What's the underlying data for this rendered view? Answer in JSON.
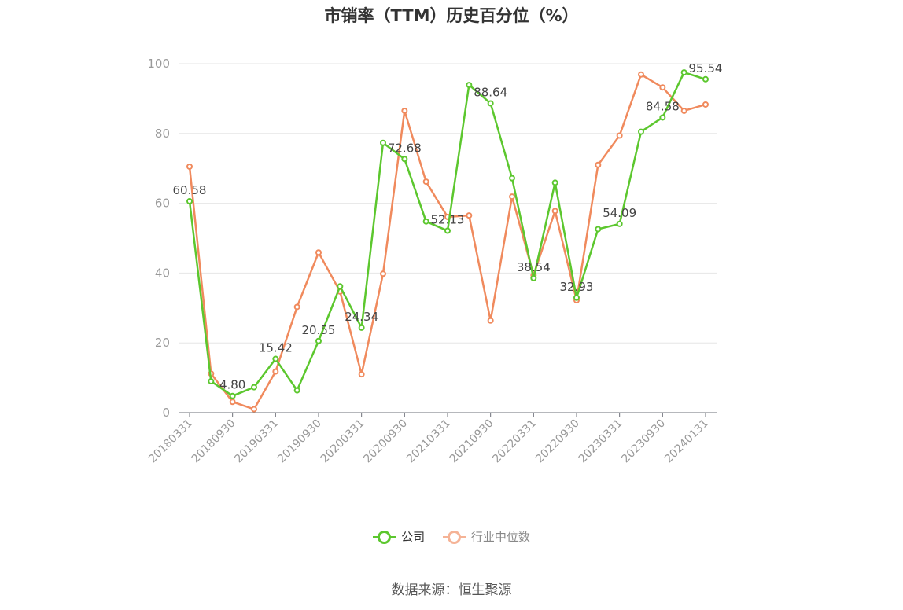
{
  "chart_data": {
    "type": "line",
    "title": "市销率（TTM）历史百分位（%）",
    "ylim": [
      0,
      100
    ],
    "yticks": [
      "0",
      "20",
      "40",
      "60",
      "80",
      "100"
    ],
    "x": [
      "20180331",
      "20180630",
      "20180930",
      "20181231",
      "20190331",
      "20190630",
      "20190930",
      "20191231",
      "20200331",
      "20200630",
      "20200930",
      "20201231",
      "20210331",
      "20210630",
      "20210930",
      "20211231",
      "20220331",
      "20220630",
      "20220930",
      "20221231",
      "20230331",
      "20230630",
      "20230930",
      "20231231",
      "20240131"
    ],
    "xticks": [
      "20180331",
      "20180930",
      "20190331",
      "20190930",
      "20200331",
      "20200930",
      "20210331",
      "20210930",
      "20220331",
      "20220930",
      "20230331",
      "20230930",
      "20240131"
    ],
    "series": [
      {
        "name": "公司",
        "color": "#5cc72e",
        "values": [
          60.58,
          9.0,
          4.8,
          7.3,
          15.42,
          6.4,
          20.55,
          36.2,
          24.34,
          77.3,
          72.68,
          54.8,
          52.13,
          93.9,
          88.64,
          67.2,
          38.54,
          65.9,
          32.93,
          52.6,
          54.09,
          80.5,
          84.58,
          97.5,
          95.54
        ]
      },
      {
        "name": "行业中位数",
        "color": "#f08a5d",
        "values": [
          70.5,
          11.2,
          3.1,
          1.0,
          11.8,
          30.3,
          45.9,
          34.7,
          11.0,
          39.8,
          86.5,
          66.2,
          56.1,
          56.5,
          26.4,
          61.9,
          39.4,
          57.8,
          32.2,
          71.0,
          79.4,
          96.9,
          93.2,
          86.5,
          88.3
        ]
      }
    ],
    "data_labels": [
      {
        "i": 0,
        "text": "60.58"
      },
      {
        "i": 2,
        "text": "4.80"
      },
      {
        "i": 4,
        "text": "15.42"
      },
      {
        "i": 6,
        "text": "20.55"
      },
      {
        "i": 8,
        "text": "24.34"
      },
      {
        "i": 10,
        "text": "72.68"
      },
      {
        "i": 12,
        "text": "52.13"
      },
      {
        "i": 14,
        "text": "88.64"
      },
      {
        "i": 16,
        "text": "38.54"
      },
      {
        "i": 18,
        "text": "32.93"
      },
      {
        "i": 20,
        "text": "54.09"
      },
      {
        "i": 22,
        "text": "84.58"
      },
      {
        "i": 24,
        "text": "95.54"
      }
    ],
    "legend": [
      "公司",
      "行业中位数"
    ],
    "legend_position": "bottom",
    "grid": true
  },
  "source": "数据来源：恒生聚源"
}
